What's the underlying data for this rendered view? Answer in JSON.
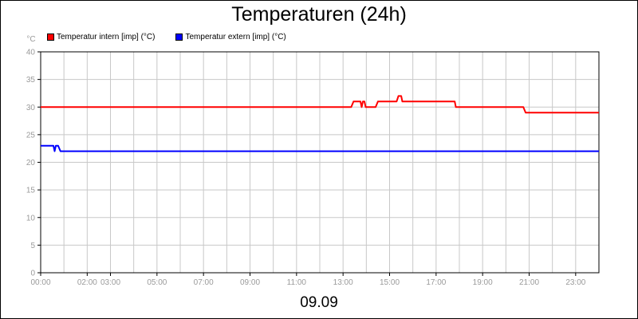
{
  "chart_data": {
    "type": "line",
    "title": "Temperaturen (24h)",
    "xlabel": "09.09",
    "ylabel": "°C",
    "ylim": [
      0,
      40
    ],
    "yticks": [
      0,
      5,
      10,
      15,
      20,
      25,
      30,
      35,
      40
    ],
    "xlim": [
      0,
      24
    ],
    "xticks": [
      "00:00",
      "02:00",
      "03:00",
      "05:00",
      "07:00",
      "09:00",
      "11:00",
      "13:00",
      "15:00",
      "17:00",
      "19:00",
      "21:00",
      "23:00"
    ],
    "xtick_hours": [
      0,
      2,
      3,
      5,
      7,
      9,
      11,
      13,
      15,
      17,
      19,
      21,
      23
    ],
    "grid": true,
    "legend_position": "top-left",
    "series": [
      {
        "name": "Temperatur intern [imp] (°C)",
        "color": "#ff0000",
        "points": [
          [
            0,
            30
          ],
          [
            13.35,
            30
          ],
          [
            13.45,
            31
          ],
          [
            13.75,
            31
          ],
          [
            13.8,
            30
          ],
          [
            13.85,
            31
          ],
          [
            13.92,
            31
          ],
          [
            13.97,
            30
          ],
          [
            14.4,
            30
          ],
          [
            14.5,
            31
          ],
          [
            15.3,
            31
          ],
          [
            15.38,
            32
          ],
          [
            15.5,
            32
          ],
          [
            15.55,
            31
          ],
          [
            17.8,
            31
          ],
          [
            17.85,
            30
          ],
          [
            20.75,
            30
          ],
          [
            20.85,
            29
          ],
          [
            24,
            29
          ]
        ]
      },
      {
        "name": "Temperatur extern [imp] (°C)",
        "color": "#0000ff",
        "points": [
          [
            0,
            23
          ],
          [
            0.55,
            23
          ],
          [
            0.6,
            22
          ],
          [
            0.65,
            23
          ],
          [
            0.75,
            23
          ],
          [
            0.85,
            22
          ],
          [
            24,
            22
          ]
        ]
      }
    ]
  }
}
